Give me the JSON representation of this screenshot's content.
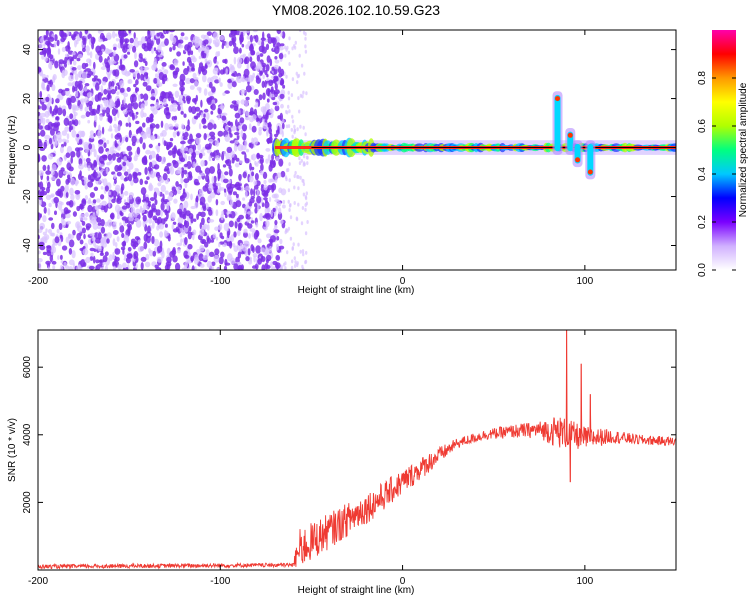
{
  "title": "YM08.2026.102.10.59.G23",
  "colors": {
    "signal": "#ef3a32",
    "scatter": "#7b2ee6",
    "scatter_light": "#d9c2ff",
    "axis": "#000000",
    "carrier_core": "#ff2a1a",
    "colorbar_stops": [
      "#ffffff",
      "#d0b0ff",
      "#7a00ff",
      "#0000ff",
      "#00c8ff",
      "#00ff80",
      "#b0ff00",
      "#ffff00",
      "#ff9900",
      "#ff0000",
      "#ff00aa"
    ]
  },
  "chart_data": [
    {
      "id": "spectrogram",
      "type": "heatmap",
      "title": "YM08.2026.102.10.59.G23",
      "xlabel": "Height of straight line (km)",
      "ylabel": "Frequency (Hz)",
      "xlim": [
        -200,
        150
      ],
      "ylim": [
        -50,
        48
      ],
      "xticks": [
        -200,
        -100,
        0,
        100
      ],
      "yticks": [
        -40,
        -20,
        0,
        20,
        40
      ],
      "noise_region_x": [
        -200,
        -65
      ],
      "noise_tail_x": [
        -65,
        -52
      ],
      "carrier_frequency": 0,
      "carrier_x": [
        -70,
        150
      ],
      "features": [
        {
          "x": 85,
          "freq": 20,
          "desc": "spike"
        },
        {
          "x": 92,
          "freq": 5
        },
        {
          "x": 96,
          "freq": -5
        },
        {
          "x": 103,
          "freq": -10
        }
      ],
      "colorbar": {
        "label": "Normalized spectral amplitude",
        "range": [
          0,
          1
        ],
        "ticks": [
          0.0,
          0.2,
          0.4,
          0.6,
          0.8
        ],
        "tick_labels": [
          "0.0",
          "0.2",
          "0.4",
          "0.6",
          "0.8"
        ]
      }
    },
    {
      "id": "snr",
      "type": "line",
      "xlabel": "Height of straight line (km)",
      "ylabel": "SNR (10 * v/v)",
      "xlim": [
        -200,
        150
      ],
      "ylim": [
        0,
        7100
      ],
      "xticks": [
        -200,
        -100,
        0,
        100
      ],
      "yticks": [
        2000,
        4000,
        6000
      ],
      "series": [
        {
          "name": "SNR",
          "envelope_x": [
            -200,
            -60,
            -57,
            -45,
            -30,
            -15,
            0,
            15,
            30,
            45,
            60,
            75,
            85,
            100,
            115,
            130,
            150
          ],
          "envelope_y": [
            100,
            150,
            600,
            1000,
            1500,
            2000,
            2600,
            3200,
            3750,
            4000,
            4100,
            4150,
            4100,
            3900,
            3950,
            3850,
            3800
          ],
          "noise_amplitude": [
            60,
            60,
            600,
            550,
            500,
            450,
            380,
            300,
            150,
            150,
            200,
            250,
            500,
            350,
            200,
            150,
            130
          ],
          "peaks": [
            {
              "x": 90,
              "y": 7100
            },
            {
              "x": 92,
              "y": 2600
            },
            {
              "x": 98,
              "y": 6100
            },
            {
              "x": 103,
              "y": 5200
            }
          ]
        }
      ]
    }
  ]
}
